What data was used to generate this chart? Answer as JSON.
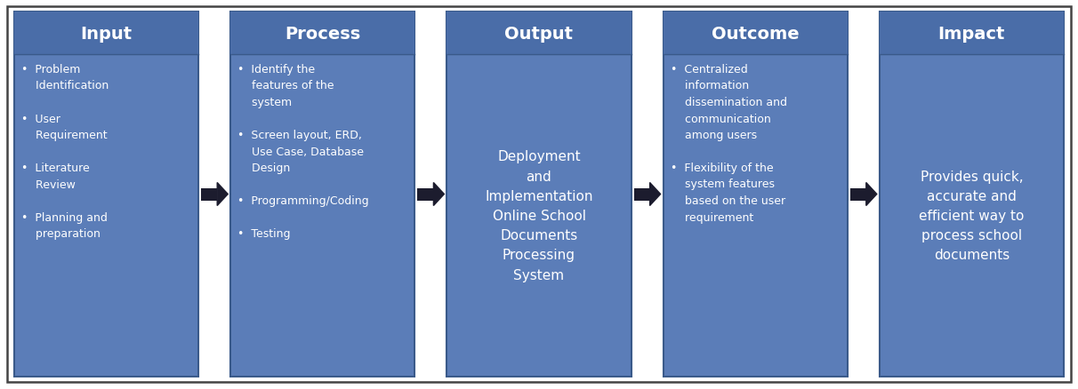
{
  "box_fill": "#5B7DB8",
  "box_edge": "#3A5A8A",
  "header_fill": "#4A6DA8",
  "text_color": "#FFFFFF",
  "arrow_color": "#1C1C2E",
  "bg_color": "#FFFFFF",
  "border_color": "#444444",
  "boxes": [
    {
      "header": "Input",
      "center_text": false,
      "body": "•  Problem\n    Identification\n\n•  User\n    Requirement\n\n•  Literature\n    Review\n\n•  Planning and\n    preparation"
    },
    {
      "header": "Process",
      "center_text": false,
      "body": "•  Identify the\n    features of the\n    system\n\n•  Screen layout, ERD,\n    Use Case, Database\n    Design\n\n•  Programming/Coding\n\n•  Testing"
    },
    {
      "header": "Output",
      "center_text": true,
      "body": "Deployment\nand\nImplementation\nOnline School\nDocuments\nProcessing\nSystem"
    },
    {
      "header": "Outcome",
      "center_text": false,
      "body": "•  Centralized\n    information\n    dissemination and\n    communication\n    among users\n\n•  Flexibility of the\n    system features\n    based on the user\n    requirement"
    },
    {
      "header": "Impact",
      "center_text": true,
      "body": "Provides quick,\naccurate and\nefficient way to\nprocess school\ndocuments"
    }
  ],
  "fig_width": 12.12,
  "fig_height": 4.39,
  "dpi": 100
}
